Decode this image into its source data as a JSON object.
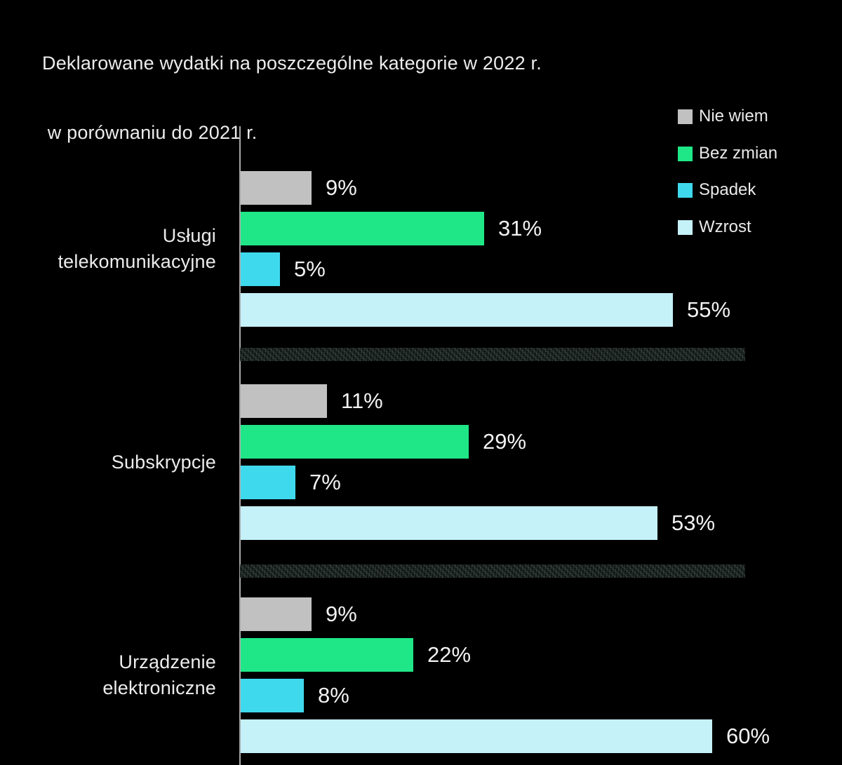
{
  "page": {
    "background": "#000000"
  },
  "title": {
    "line1": "Deklarowane wydatki na poszczególne kategorie w 2022 r.",
    "line2": " w porównaniu do 2021 r."
  },
  "chart_data": {
    "type": "bar",
    "orientation": "horizontal",
    "title": "Deklarowane wydatki na poszczególne kategorie w 2022 r. w porównaniu do 2021 r.",
    "categories": [
      "Usługi telekomunikacyjne",
      "Subskrypcje",
      "Urządzenie elektroniczne"
    ],
    "category_label_lines": [
      [
        "Usługi",
        "telekomunikacyjne"
      ],
      [
        "Subskrypcje"
      ],
      [
        "Urządzenie",
        "elektroniczne"
      ]
    ],
    "series": [
      {
        "name": "Nie wiem",
        "color": "#c1c1c1",
        "values": [
          9,
          11,
          9
        ]
      },
      {
        "name": "Bez zmian",
        "color": "#1fe787",
        "values": [
          31,
          29,
          22
        ]
      },
      {
        "name": "Spadek",
        "color": "#3fd9ed",
        "values": [
          5,
          7,
          8
        ]
      },
      {
        "name": "Wzrost",
        "color": "#c5f1f9",
        "values": [
          55,
          53,
          60
        ]
      }
    ],
    "value_suffix": "%",
    "xlim": [
      0,
      64
    ],
    "grid": false,
    "legend_position": "top-right",
    "background": "#000000",
    "axis_color": "#a8a8a8",
    "text_color": "#ececec"
  }
}
